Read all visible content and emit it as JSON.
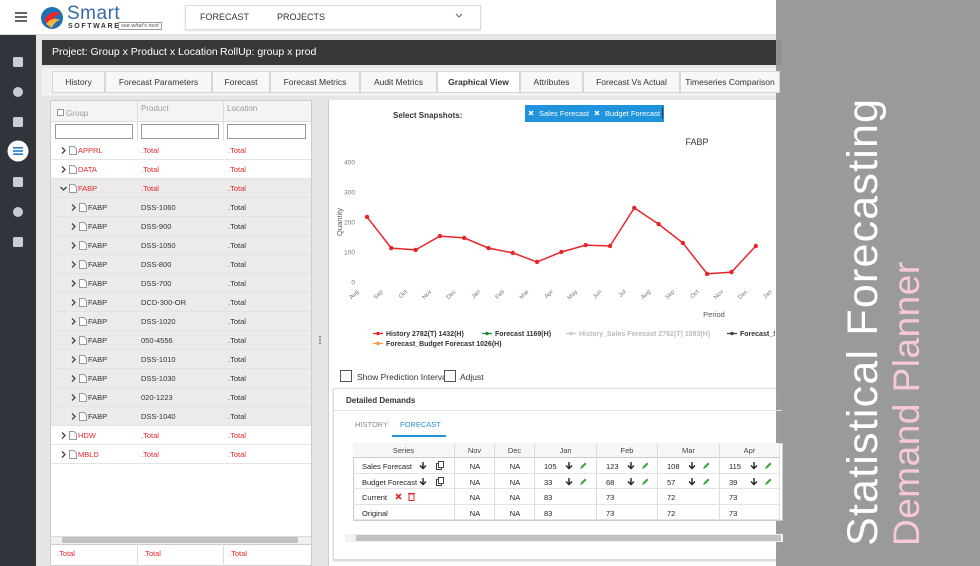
{
  "app": {
    "logo": "Smart",
    "logo_sub": "SOFTWARE",
    "tagline": "see what's next",
    "nav": [
      "FORECAST",
      "PROJECTS"
    ]
  },
  "project": {
    "project": "Project: Group x Product x Location",
    "rollup": "RollUp: group x prod"
  },
  "tabs": [
    "History",
    "Forecast Parameters",
    "Forecast",
    "Forecast Metrics",
    "Audit Metrics",
    "Graphical View",
    "Attributes",
    "Forecast Vs Actual",
    "Timeseries Comparison"
  ],
  "active_tab": 5,
  "grid": {
    "columns": [
      "Group",
      "Product",
      "Location"
    ],
    "rows": [
      {
        "group": "APPRL",
        "product": ".Total",
        "location": ".Total"
      },
      {
        "group": "DATA",
        "product": ".Total",
        "location": ".Total"
      },
      {
        "group": "FABP",
        "product": ".Total",
        "location": ".Total",
        "expanded": true
      },
      {
        "group": "FABP",
        "product": "DSS-1060",
        "location": ".Total",
        "child": true
      },
      {
        "group": "FABP",
        "product": "DSS-900",
        "location": ".Total",
        "child": true
      },
      {
        "group": "FABP",
        "product": "DSS-1050",
        "location": ".Total",
        "child": true
      },
      {
        "group": "FABP",
        "product": "DSS-800",
        "location": ".Total",
        "child": true
      },
      {
        "group": "FABP",
        "product": "DSS-700",
        "location": ".Total",
        "child": true
      },
      {
        "group": "FABP",
        "product": "DCD-300-OR",
        "location": ".Total",
        "child": true
      },
      {
        "group": "FABP",
        "product": "DSS-1020",
        "location": ".Total",
        "child": true
      },
      {
        "group": "FABP",
        "product": "050-4556",
        "location": ".Total",
        "child": true
      },
      {
        "group": "FABP",
        "product": "DSS-1010",
        "location": ".Total",
        "child": true
      },
      {
        "group": "FABP",
        "product": "DSS-1030",
        "location": ".Total",
        "child": true
      },
      {
        "group": "FABP",
        "product": "020-1223",
        "location": ".Total",
        "child": true
      },
      {
        "group": "FABP",
        "product": "DSS-1040",
        "location": ".Total",
        "child": true
      },
      {
        "group": "HDW",
        "product": ".Total",
        "location": ".Total"
      },
      {
        "group": "MBLD",
        "product": ".Total",
        "location": ".Total"
      }
    ],
    "footer": [
      ".Total",
      ".Total",
      ".Total"
    ]
  },
  "snapshots": {
    "label": "Select Snapshots:",
    "chips": [
      "Sales Forecast",
      "Budget Forecast"
    ]
  },
  "chart": {
    "type": "line",
    "title": "FABP",
    "y_label": "Quantity",
    "x_label": "Period",
    "categories": [
      "Aug",
      "Sep",
      "Oct",
      "Nov",
      "Dec",
      "Jan",
      "Feb",
      "Mar",
      "Apr",
      "May",
      "Jun",
      "Jul",
      "Aug",
      "Sep",
      "Oct",
      "Nov",
      "Dec",
      "Jan"
    ],
    "ylim": [
      0,
      400
    ],
    "yticks": [
      0,
      100,
      200,
      300,
      400
    ],
    "grid": false,
    "series": [
      {
        "name": "History 2782(T) 1432(H)",
        "color": "#e8262a",
        "values": [
          217,
          113,
          107,
          153,
          147,
          113,
          97,
          67,
          100,
          123,
          120,
          247,
          193,
          130,
          27,
          33,
          120,
          null
        ]
      },
      {
        "name": "Forecast 1169(H)",
        "color": "#2e8b3a"
      },
      {
        "name": "History_Sales Forecast 2782(T) 1093(H)",
        "color": "#c8c8c8"
      },
      {
        "name": "Forecast_S",
        "color": "#444444"
      },
      {
        "name": "Forecast_Budget Forecast 1026(H)",
        "color": "#f59a3c"
      }
    ]
  },
  "options": [
    "Show Prediction Interval",
    "Adjust"
  ],
  "detail": {
    "title": "Detailed Demands",
    "tabs": [
      "HISTORY",
      "FORECAST"
    ],
    "active_tab": 1,
    "columns": [
      "Series",
      "Nov",
      "Dec",
      "Jan",
      "Feb",
      "Mar",
      "Apr"
    ],
    "rows": [
      [
        "Sales Forecast",
        "NA",
        "NA",
        105,
        123,
        108,
        115
      ],
      [
        "Budget Forecast",
        "NA",
        "NA",
        33,
        68,
        57,
        39
      ],
      [
        "Current",
        "NA",
        "NA",
        83,
        73,
        72,
        73
      ],
      [
        "Original",
        "NA",
        "NA",
        83,
        73,
        72,
        73
      ]
    ]
  },
  "banner": {
    "line1": "Statistical Forecasting",
    "line2": "Demand Planner"
  }
}
